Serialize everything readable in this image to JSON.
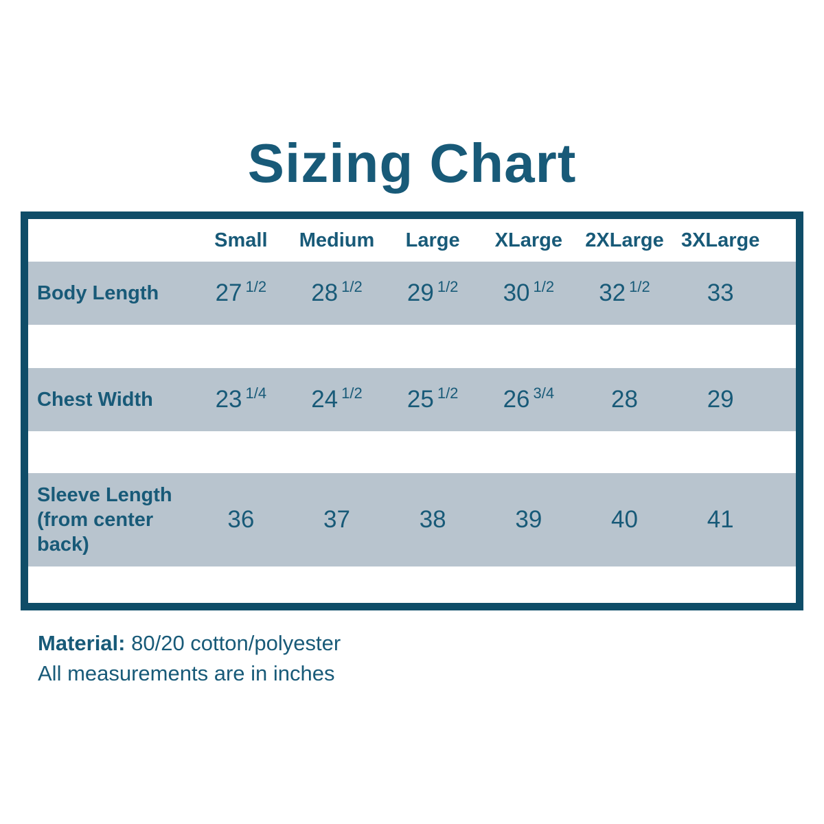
{
  "title": "Sizing Chart",
  "colors": {
    "teal_text": "#185A78",
    "table_border": "#0F4D68",
    "row_background": "#B8C4CE",
    "page_background": "#FFFFFF"
  },
  "table": {
    "size_headers": [
      "Small",
      "Medium",
      "Large",
      "XLarge",
      "2XLarge",
      "3XLarge"
    ],
    "rows": [
      {
        "label": "Body Length",
        "cells": [
          {
            "whole": "27",
            "frac": "1/2"
          },
          {
            "whole": "28",
            "frac": "1/2"
          },
          {
            "whole": "29",
            "frac": "1/2"
          },
          {
            "whole": "30",
            "frac": "1/2"
          },
          {
            "whole": "32",
            "frac": "1/2"
          },
          {
            "whole": "33",
            "frac": ""
          }
        ]
      },
      {
        "label": "Chest Width",
        "cells": [
          {
            "whole": "23",
            "frac": "1/4"
          },
          {
            "whole": "24",
            "frac": "1/2"
          },
          {
            "whole": "25",
            "frac": "1/2"
          },
          {
            "whole": "26",
            "frac": "3/4"
          },
          {
            "whole": "28",
            "frac": ""
          },
          {
            "whole": "29",
            "frac": ""
          }
        ]
      },
      {
        "label": "Sleeve Length (from center back)",
        "cells": [
          {
            "whole": "36",
            "frac": ""
          },
          {
            "whole": "37",
            "frac": ""
          },
          {
            "whole": "38",
            "frac": ""
          },
          {
            "whole": "39",
            "frac": ""
          },
          {
            "whole": "40",
            "frac": ""
          },
          {
            "whole": "41",
            "frac": ""
          }
        ]
      }
    ]
  },
  "footer": {
    "material_label": "Material:",
    "material_value": "80/20 cotton/polyester",
    "note": "All measurements are in inches"
  },
  "chart_data": {
    "type": "table",
    "title": "Sizing Chart",
    "columns": [
      "",
      "Small",
      "Medium",
      "Large",
      "XLarge",
      "2XLarge",
      "3XLarge"
    ],
    "rows": [
      [
        "Body Length",
        "27 1/2",
        "28 1/2",
        "29 1/2",
        "30 1/2",
        "32 1/2",
        "33"
      ],
      [
        "Chest Width",
        "23 1/4",
        "24 1/2",
        "25 1/2",
        "26 3/4",
        "28",
        "29"
      ],
      [
        "Sleeve Length (from center back)",
        "36",
        "37",
        "38",
        "39",
        "40",
        "41"
      ]
    ],
    "units": "inches",
    "notes": [
      "Material: 80/20 cotton/polyester",
      "All measurements are in inches"
    ]
  }
}
